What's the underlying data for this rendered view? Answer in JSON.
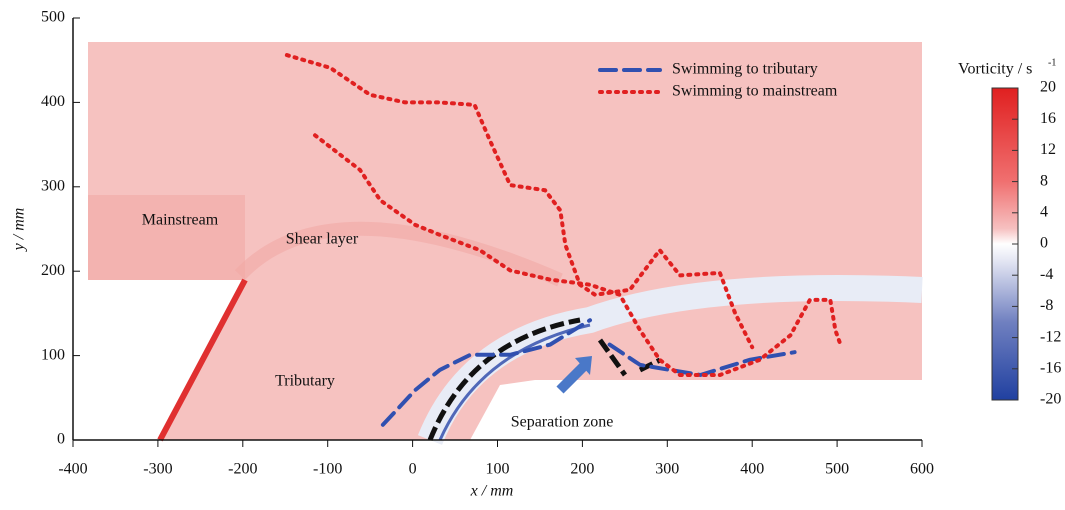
{
  "chart_data": {
    "type": "line",
    "xlabel": "x / mm",
    "ylabel": "y / mm",
    "xlim": [
      -400,
      600
    ],
    "xticks": [
      -400,
      -300,
      -200,
      -100,
      0,
      100,
      200,
      300,
      400,
      500,
      600
    ],
    "ylim": [
      0,
      500
    ],
    "yticks": [
      0,
      100,
      200,
      300,
      400,
      500
    ],
    "legend": "upper right",
    "annotations": [
      "Mainstream",
      "Shear layer",
      "Tributary",
      "Separation zone"
    ],
    "colorbar": {
      "title": "Vorticity / s",
      "title_sup": "-1",
      "lim": [
        -20,
        20
      ],
      "ticks": [
        20,
        16,
        12,
        8,
        4,
        0,
        -4,
        -8,
        -12,
        -16,
        -20
      ]
    },
    "series": [
      {
        "name": "Swimming to tributary",
        "color": "#3050b0",
        "style": "dashed",
        "x": [
          -35,
          3,
          32,
          68,
          115,
          162,
          209,
          null,
          232,
          268,
          339,
          397,
          450
        ],
        "y": [
          18,
          59,
          83,
          101,
          101,
          113,
          142,
          null,
          113,
          89,
          77,
          95,
          104
        ]
      },
      {
        "name": "Swimming to mainstream",
        "color": "#e02020",
        "style": "dotted",
        "x": [
          -148,
          -97,
          -50,
          -9,
          32,
          73,
          91,
          115,
          156,
          174,
          180,
          197,
          215,
          256,
          291,
          315,
          362,
          380,
          400,
          null,
          -115,
          -62,
          -38,
          3,
          32,
          79,
          115,
          162,
          209,
          244,
          268,
          291,
          315,
          362,
          409,
          445,
          468,
          492,
          498,
          504
        ],
        "y": [
          456,
          441,
          409,
          400,
          400,
          397,
          355,
          302,
          296,
          272,
          231,
          184,
          172,
          178,
          225,
          195,
          198,
          150,
          110,
          null,
          361,
          320,
          284,
          255,
          243,
          225,
          201,
          190,
          184,
          172,
          130,
          95,
          77,
          77,
          95,
          124,
          166,
          166,
          130,
          113
        ]
      }
    ]
  }
}
